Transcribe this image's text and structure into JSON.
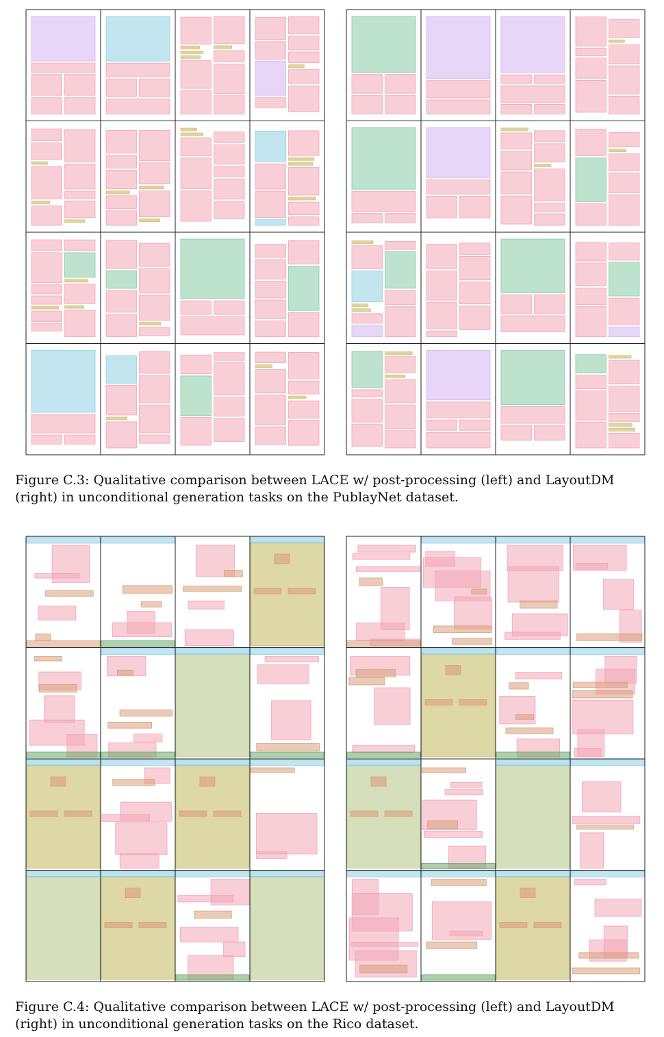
{
  "palette": {
    "text": "#f3a6b6",
    "figure": "#d6b4f3",
    "table": "#8fcfe2",
    "list": "#86cba6",
    "title": "#d2c27b",
    "toolbar": "#8fcfe2",
    "background_image": "#b9c98e",
    "image": "#f3a6b6",
    "card": "#d9a07c",
    "web_view": "#c8bd6a",
    "drawer": "#6aa86a"
  },
  "figures": [
    {
      "id": "C.3",
      "caption": "Figure C.3: Qualitative comparison between LACE w/ post-processing (left) and LayoutDM (right) in unconditional generation tasks on the PublayNet dataset.",
      "dataset": "PublayNet",
      "panels": [
        "LACE w/ post-processing",
        "LayoutDM"
      ]
    },
    {
      "id": "C.4",
      "caption": "Figure C.4: Qualitative comparison between LACE w/ post-processing (left) and LayoutDM (right) in unconditional generation tasks on the Rico dataset.",
      "dataset": "Rico",
      "panels": [
        "LACE w/ post-processing",
        "LayoutDM"
      ]
    }
  ]
}
